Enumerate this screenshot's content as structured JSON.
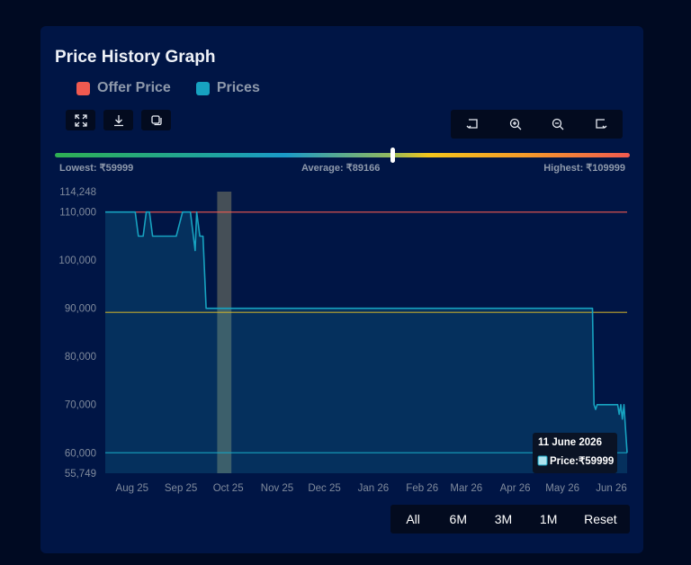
{
  "title": "Price History Graph",
  "legend": [
    {
      "label": "Offer Price",
      "color": "#f05a50"
    },
    {
      "label": "Prices",
      "color": "#17a2c0"
    }
  ],
  "toolbar_left": [
    {
      "icon": "expand-icon"
    },
    {
      "icon": "download-icon"
    },
    {
      "icon": "copy-icon"
    }
  ],
  "toolbar_right": [
    {
      "icon": "pan-left-icon"
    },
    {
      "icon": "zoom-in-icon"
    },
    {
      "icon": "zoom-out-icon"
    },
    {
      "icon": "pan-right-icon"
    }
  ],
  "stats": {
    "lowest": "Lowest: ₹59999",
    "average": "Average: ₹89166",
    "highest": "Highest: ₹109999"
  },
  "range_buttons": [
    "All",
    "6M",
    "3M",
    "1M",
    "Reset"
  ],
  "tooltip": {
    "date": "11 June 2026",
    "price": "Price:₹59999"
  },
  "chart_data": {
    "type": "area",
    "series": [
      {
        "name": "Prices",
        "color": "#17a2c0",
        "x": [
          "2025-07-15",
          "2025-08-01",
          "2025-08-03",
          "2025-08-05",
          "2025-08-08",
          "2025-08-10",
          "2025-08-12",
          "2025-08-14",
          "2025-08-16",
          "2025-08-22",
          "2025-08-29",
          "2025-09-02",
          "2025-09-04",
          "2025-09-07",
          "2025-09-10",
          "2025-09-11",
          "2025-09-13",
          "2025-09-15",
          "2025-09-17",
          "2025-09-19",
          "2025-09-20",
          "2025-09-24",
          "2025-12-31",
          "2026-05-20",
          "2026-05-21",
          "2026-05-22",
          "2026-05-23",
          "2026-05-24",
          "2026-06-05",
          "2026-06-06",
          "2026-06-07",
          "2026-06-08",
          "2026-06-09",
          "2026-06-10",
          "2026-06-11"
        ],
        "values": [
          109999,
          109999,
          109999,
          104999,
          104999,
          109999,
          109999,
          104999,
          104999,
          104999,
          104999,
          109999,
          109999,
          109999,
          102000,
          109999,
          104999,
          104999,
          89999,
          89999,
          89999,
          89999,
          89999,
          89999,
          69999,
          68999,
          69999,
          69999,
          69999,
          67999,
          69999,
          66999,
          69999,
          64999,
          59999
        ]
      }
    ],
    "reference_lines": [
      {
        "value": 109999,
        "color": "#f05a50"
      },
      {
        "value": 89166,
        "color": "#d4b52a"
      },
      {
        "value": 59999,
        "color": "#17a2c0"
      }
    ],
    "highlight_band": {
      "x_start": "2025-09-24",
      "x_end": "2025-10-03"
    },
    "x_ticks": [
      "Aug 25",
      "Sep 25",
      "Oct 25",
      "Nov 25",
      "Dec 25",
      "Jan 26",
      "Feb 26",
      "Mar 26",
      "Apr 26",
      "May 26",
      "Jun 26"
    ],
    "x_tick_dates": [
      "2025-08-01",
      "2025-09-01",
      "2025-10-01",
      "2025-11-01",
      "2025-12-01",
      "2026-01-01",
      "2026-02-01",
      "2026-03-01",
      "2026-04-01",
      "2026-05-01",
      "2026-06-01"
    ],
    "y_ticks": [
      "114,248",
      "110,000",
      "100,000",
      "90,000",
      "80,000",
      "70,000",
      "60,000",
      "55,749"
    ],
    "y_tick_values": [
      114248,
      110000,
      100000,
      90000,
      80000,
      70000,
      60000,
      55749
    ],
    "ylim": [
      55749,
      114248
    ],
    "xlim": [
      "2025-07-15",
      "2026-06-11"
    ],
    "grid": false
  }
}
